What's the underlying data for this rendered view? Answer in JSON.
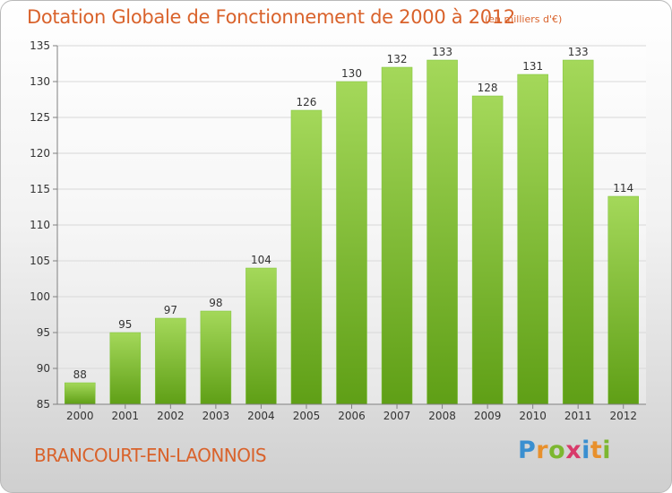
{
  "header": {
    "title": "Dotation Globale de Fonctionnement de 2000 à 2012",
    "subtitle": "(en milliers d'€)"
  },
  "footer": {
    "commune": "BRANCOURT-EN-LAONNOIS",
    "logo_letters": [
      "P",
      "r",
      "o",
      "x",
      "i",
      "t",
      "i"
    ],
    "logo_colors": [
      "#3a8fd0",
      "#e8902c",
      "#7cb730",
      "#d83a6a",
      "#3a8fd0",
      "#e8902c",
      "#7cb730"
    ]
  },
  "colors": {
    "bar_light": "#a4d85a",
    "bar_dark": "#5f9f16",
    "text": "#d9622b",
    "grid": "#d8d8d8",
    "axis": "#808080"
  },
  "chart_data": {
    "type": "bar",
    "categories": [
      "2000",
      "2001",
      "2002",
      "2003",
      "2004",
      "2005",
      "2006",
      "2007",
      "2008",
      "2009",
      "2010",
      "2011",
      "2012"
    ],
    "values": [
      88,
      95,
      97,
      98,
      104,
      126,
      130,
      132,
      133,
      128,
      131,
      133,
      114
    ],
    "ylim": [
      85,
      135
    ],
    "yticks": [
      85,
      90,
      95,
      100,
      105,
      110,
      115,
      120,
      125,
      130,
      135
    ],
    "grid": true,
    "show_data_labels": true
  }
}
